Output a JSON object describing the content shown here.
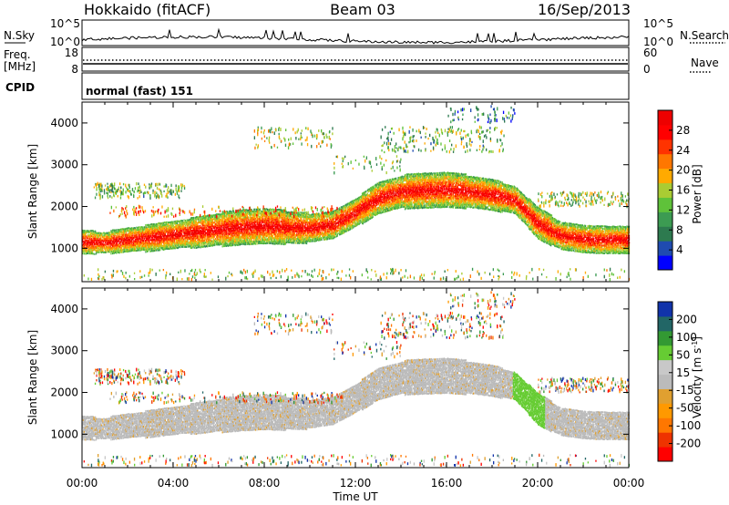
{
  "header": {
    "station": "Hokkaido (fitACF)",
    "beam": "Beam 03",
    "date": "16/Sep/2013"
  },
  "params": {
    "nsky_label": "N.Sky",
    "nsky_ticks": [
      "10^5",
      "10^0"
    ],
    "nsearch_label": "N.Search",
    "freq_label_1": "Freq.",
    "freq_label_2": "[MHz]",
    "freq_ticks": [
      "18",
      "8"
    ],
    "nave_ticks": [
      "60",
      "0"
    ],
    "nave_label": "Nave",
    "cpid_label": "CPID",
    "cpid_value": "normal (fast) 151"
  },
  "colors": {
    "power_scale": [
      "#0000ff",
      "#1f4bb0",
      "#2d7a4f",
      "#3c9b52",
      "#5fc23a",
      "#aacc33",
      "#ffaa00",
      "#ff7700",
      "#ff3300",
      "#ff0000",
      "#ee0000"
    ],
    "velocity_scale": [
      "#ff0000",
      "#ee3300",
      "#ff7700",
      "#ff9900",
      "#e0a030",
      "#bbbbbb",
      "#c8c8c8",
      "#66cc33",
      "#339933",
      "#226666",
      "#1133aa"
    ],
    "ground_scatter": "#bbbbbb"
  },
  "chart_data": [
    {
      "type": "heatmap",
      "panel": "power",
      "ylabel": "Slant Range [km]",
      "xlabel": "Time UT",
      "xticks": [
        "00:00",
        "04:00",
        "08:00",
        "12:00",
        "16:00",
        "20:00",
        "00:00"
      ],
      "yticks": [
        "1000",
        "2000",
        "3000",
        "4000"
      ],
      "ylim": [
        200,
        4500
      ],
      "xlim_hours": [
        0,
        24
      ],
      "colorbar_label": "Power [dB]",
      "colorbar_ticks": [
        "28",
        "24",
        "20",
        "16",
        "12",
        "8",
        "4"
      ],
      "colorbar_range": [
        0,
        30
      ],
      "main_band": [
        {
          "t": 0,
          "r": 1150,
          "w": 260
        },
        {
          "t": 1,
          "r": 1130,
          "w": 240
        },
        {
          "t": 2,
          "r": 1200,
          "w": 270
        },
        {
          "t": 3,
          "r": 1250,
          "w": 300
        },
        {
          "t": 4,
          "r": 1320,
          "w": 330
        },
        {
          "t": 5,
          "r": 1380,
          "w": 340
        },
        {
          "t": 6,
          "r": 1450,
          "w": 380
        },
        {
          "t": 7,
          "r": 1500,
          "w": 400
        },
        {
          "t": 8,
          "r": 1530,
          "w": 420
        },
        {
          "t": 9,
          "r": 1500,
          "w": 380
        },
        {
          "t": 10,
          "r": 1480,
          "w": 330
        },
        {
          "t": 11,
          "r": 1560,
          "w": 300
        },
        {
          "t": 12,
          "r": 1850,
          "w": 330
        },
        {
          "t": 13,
          "r": 2200,
          "w": 360
        },
        {
          "t": 14,
          "r": 2350,
          "w": 380
        },
        {
          "t": 15,
          "r": 2380,
          "w": 400
        },
        {
          "t": 16,
          "r": 2400,
          "w": 400
        },
        {
          "t": 17,
          "r": 2350,
          "w": 380
        },
        {
          "t": 18,
          "r": 2280,
          "w": 350
        },
        {
          "t": 19,
          "r": 2150,
          "w": 320
        },
        {
          "t": 20,
          "r": 1600,
          "w": 350
        },
        {
          "t": 21,
          "r": 1300,
          "w": 330
        },
        {
          "t": 22,
          "r": 1220,
          "w": 300
        },
        {
          "t": 23,
          "r": 1200,
          "w": 300
        },
        {
          "t": 24,
          "r": 1200,
          "w": 300
        }
      ]
    },
    {
      "type": "heatmap",
      "panel": "velocity",
      "ylabel": "Slant Range [km]",
      "xlabel": "Time UT",
      "xticks": [
        "00:00",
        "04:00",
        "08:00",
        "12:00",
        "16:00",
        "20:00",
        "00:00"
      ],
      "yticks": [
        "1000",
        "2000",
        "3000",
        "4000"
      ],
      "ylim": [
        200,
        4500
      ],
      "xlim_hours": [
        0,
        24
      ],
      "colorbar_label": "Velocity [m s^-1]",
      "colorbar_ticks": [
        "200",
        "100",
        "50",
        "15",
        "-15",
        "-50",
        "-100",
        "-200"
      ],
      "colorbar_range": [
        -250,
        250
      ]
    }
  ]
}
